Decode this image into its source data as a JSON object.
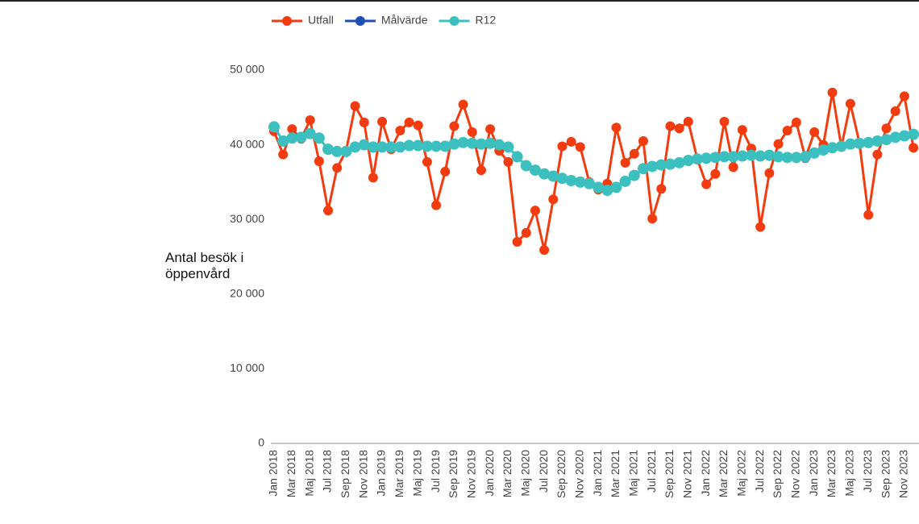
{
  "chart_data": {
    "type": "line",
    "ylabel": "Antal besök i öppenvård",
    "categories": [
      "Jan 2018",
      null,
      "Mar 2018",
      null,
      "Maj 2018",
      null,
      "Jul 2018",
      null,
      "Sep 2018",
      null,
      "Nov 2018",
      null,
      "Jan 2019",
      null,
      "Mar 2019",
      null,
      "Maj 2019",
      null,
      "Jul 2019",
      null,
      "Sep 2019",
      null,
      "Nov 2019",
      null,
      "Jan 2020",
      null,
      "Mar 2020",
      null,
      "Maj 2020",
      null,
      "Jul 2020",
      null,
      "Sep 2020",
      null,
      "Nov 2020",
      null,
      "Jan 2021",
      null,
      "Mar 2021",
      null,
      "Maj 2021",
      null,
      "Jul 2021",
      null,
      "Sep 2021",
      null,
      "Nov 2021",
      null,
      "Jan 2022",
      null,
      "Mar 2022",
      null,
      "Maj 2022",
      null,
      "Jul 2022",
      null,
      "Sep 2022",
      null,
      "Nov 2022",
      null,
      "Jan 2023",
      null,
      "Mar 2023",
      null,
      "Maj 2023",
      null,
      "Jul 2023",
      null,
      "Sep 2023",
      null,
      "Nov 2023",
      null
    ],
    "series": [
      {
        "name": "Utfall",
        "color": "#f23c0f",
        "values": [
          41800,
          38700,
          42100,
          40800,
          43300,
          37800,
          31200,
          36900,
          39200,
          45200,
          43000,
          35600,
          43100,
          39400,
          41900,
          43000,
          42600,
          37700,
          31900,
          36400,
          42500,
          45400,
          41700,
          36600,
          42100,
          39200,
          37700,
          27000,
          28200,
          31200,
          25900,
          32700,
          39800,
          40400,
          39700,
          35000,
          34000,
          34800,
          42300,
          37600,
          38800,
          40500,
          30100,
          34100,
          42500,
          42200,
          43100,
          38100,
          34700,
          36100,
          43100,
          37000,
          42000,
          39500,
          29000,
          36200,
          40100,
          41900,
          43000,
          38200,
          41700,
          40000,
          47000,
          39700,
          45500,
          40300,
          30600,
          38700,
          42200,
          44500,
          46500,
          39600
        ]
      },
      {
        "name": "Målvärde",
        "color": "#1f4fb5",
        "values": [
          null,
          null,
          null,
          null,
          null,
          null,
          null,
          null,
          null,
          null,
          null,
          null,
          null,
          null,
          null,
          null,
          null,
          null,
          null,
          null,
          null,
          null,
          null,
          null,
          null,
          null,
          null,
          null,
          null,
          null,
          null,
          null,
          null,
          null,
          null,
          null,
          null,
          null,
          null,
          null,
          null,
          null,
          null,
          null,
          null,
          null,
          null,
          null,
          null,
          null,
          null,
          null,
          null,
          null,
          null,
          null,
          null,
          null,
          null,
          null,
          null,
          null,
          null,
          null,
          null,
          null,
          null,
          null,
          null,
          null,
          null,
          null
        ]
      },
      {
        "name": "R12",
        "color": "#3cbfbf",
        "values": [
          42400,
          40500,
          40900,
          41000,
          41500,
          40900,
          39400,
          39100,
          39100,
          39700,
          40000,
          39700,
          39700,
          39700,
          39700,
          39900,
          39900,
          39800,
          39800,
          39800,
          40100,
          40300,
          40200,
          40100,
          40200,
          40000,
          39700,
          38400,
          37200,
          36600,
          36100,
          35800,
          35500,
          35200,
          35000,
          34800,
          34300,
          33900,
          34300,
          35100,
          35900,
          36800,
          37100,
          37300,
          37400,
          37600,
          37900,
          38100,
          38200,
          38300,
          38400,
          38400,
          38500,
          38600,
          38500,
          38600,
          38400,
          38300,
          38300,
          38400,
          38900,
          39300,
          39600,
          39800,
          40100,
          40200,
          40300,
          40500,
          40700,
          41000,
          41200,
          41400
        ]
      }
    ],
    "ylim": [
      0,
      50000
    ],
    "yticks": [
      0,
      {
        "value": 10000,
        "label": "10 000"
      },
      {
        "value": 20000,
        "label": "20 000"
      },
      {
        "value": 30000,
        "label": "30 000"
      },
      {
        "value": 40000,
        "label": "40 000"
      },
      {
        "value": 50000,
        "label": "50 000"
      }
    ],
    "grid": false,
    "legend": "top"
  }
}
